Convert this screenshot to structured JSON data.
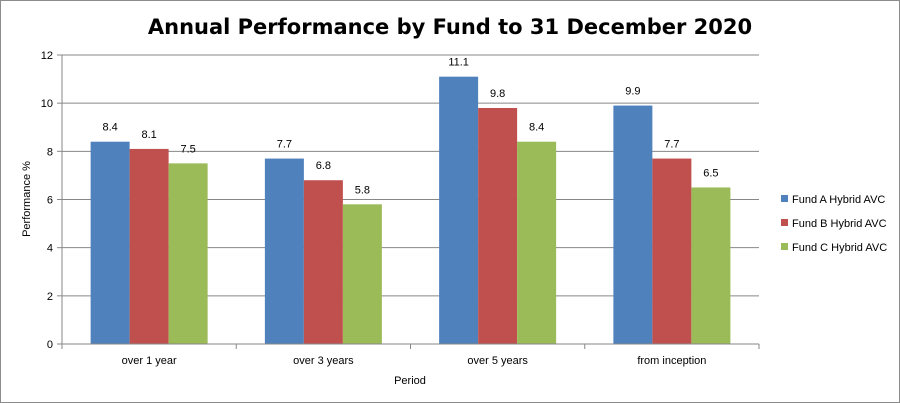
{
  "chart_data": {
    "type": "bar",
    "title": "Annual Performance by Fund to 31 December 2020",
    "xlabel": "Period",
    "ylabel": "Performance %",
    "categories": [
      "over 1 year",
      "over 3 years",
      "over 5 years",
      "from inception"
    ],
    "series": [
      {
        "name": "Fund A Hybrid AVC",
        "color": "#4f81bd",
        "values": [
          8.4,
          7.7,
          11.1,
          9.9
        ]
      },
      {
        "name": "Fund B Hybrid AVC",
        "color": "#c0504d",
        "values": [
          8.1,
          6.8,
          9.8,
          7.7
        ]
      },
      {
        "name": "Fund C Hybrid AVC",
        "color": "#9bbb59",
        "values": [
          7.5,
          5.8,
          8.4,
          6.5
        ]
      }
    ],
    "ylim": [
      0,
      12
    ],
    "yticks": [
      0,
      2,
      4,
      6,
      8,
      10,
      12
    ],
    "grid": true,
    "legend": "right"
  }
}
